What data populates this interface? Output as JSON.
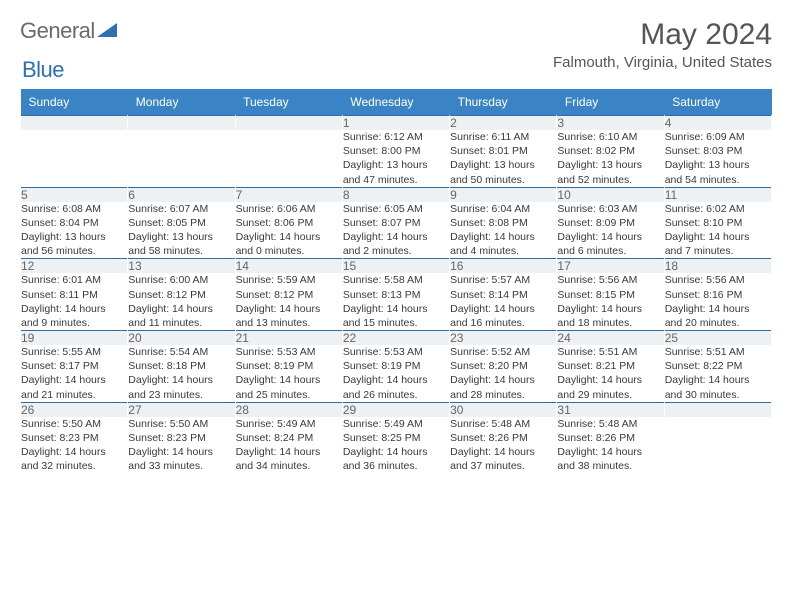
{
  "logo": {
    "word1": "General",
    "word2": "Blue"
  },
  "title": "May 2024",
  "location": "Falmouth, Virginia, United States",
  "colors": {
    "header_bg": "#3a84c5",
    "header_text": "#ffffff",
    "daynum_bg": "#eef1f3",
    "row_border": "#2c6aa8",
    "body_text": "#3a3a3a",
    "title_text": "#555555",
    "logo_gray": "#6a6a6a",
    "logo_blue": "#2f6fb3"
  },
  "day_headers": [
    "Sunday",
    "Monday",
    "Tuesday",
    "Wednesday",
    "Thursday",
    "Friday",
    "Saturday"
  ],
  "weeks": [
    [
      null,
      null,
      null,
      {
        "n": "1",
        "sr": "6:12 AM",
        "ss": "8:00 PM",
        "dh": "13",
        "dm": "47"
      },
      {
        "n": "2",
        "sr": "6:11 AM",
        "ss": "8:01 PM",
        "dh": "13",
        "dm": "50"
      },
      {
        "n": "3",
        "sr": "6:10 AM",
        "ss": "8:02 PM",
        "dh": "13",
        "dm": "52"
      },
      {
        "n": "4",
        "sr": "6:09 AM",
        "ss": "8:03 PM",
        "dh": "13",
        "dm": "54"
      }
    ],
    [
      {
        "n": "5",
        "sr": "6:08 AM",
        "ss": "8:04 PM",
        "dh": "13",
        "dm": "56"
      },
      {
        "n": "6",
        "sr": "6:07 AM",
        "ss": "8:05 PM",
        "dh": "13",
        "dm": "58"
      },
      {
        "n": "7",
        "sr": "6:06 AM",
        "ss": "8:06 PM",
        "dh": "14",
        "dm": "0"
      },
      {
        "n": "8",
        "sr": "6:05 AM",
        "ss": "8:07 PM",
        "dh": "14",
        "dm": "2"
      },
      {
        "n": "9",
        "sr": "6:04 AM",
        "ss": "8:08 PM",
        "dh": "14",
        "dm": "4"
      },
      {
        "n": "10",
        "sr": "6:03 AM",
        "ss": "8:09 PM",
        "dh": "14",
        "dm": "6"
      },
      {
        "n": "11",
        "sr": "6:02 AM",
        "ss": "8:10 PM",
        "dh": "14",
        "dm": "7"
      }
    ],
    [
      {
        "n": "12",
        "sr": "6:01 AM",
        "ss": "8:11 PM",
        "dh": "14",
        "dm": "9"
      },
      {
        "n": "13",
        "sr": "6:00 AM",
        "ss": "8:12 PM",
        "dh": "14",
        "dm": "11"
      },
      {
        "n": "14",
        "sr": "5:59 AM",
        "ss": "8:12 PM",
        "dh": "14",
        "dm": "13"
      },
      {
        "n": "15",
        "sr": "5:58 AM",
        "ss": "8:13 PM",
        "dh": "14",
        "dm": "15"
      },
      {
        "n": "16",
        "sr": "5:57 AM",
        "ss": "8:14 PM",
        "dh": "14",
        "dm": "16"
      },
      {
        "n": "17",
        "sr": "5:56 AM",
        "ss": "8:15 PM",
        "dh": "14",
        "dm": "18"
      },
      {
        "n": "18",
        "sr": "5:56 AM",
        "ss": "8:16 PM",
        "dh": "14",
        "dm": "20"
      }
    ],
    [
      {
        "n": "19",
        "sr": "5:55 AM",
        "ss": "8:17 PM",
        "dh": "14",
        "dm": "21"
      },
      {
        "n": "20",
        "sr": "5:54 AM",
        "ss": "8:18 PM",
        "dh": "14",
        "dm": "23"
      },
      {
        "n": "21",
        "sr": "5:53 AM",
        "ss": "8:19 PM",
        "dh": "14",
        "dm": "25"
      },
      {
        "n": "22",
        "sr": "5:53 AM",
        "ss": "8:19 PM",
        "dh": "14",
        "dm": "26"
      },
      {
        "n": "23",
        "sr": "5:52 AM",
        "ss": "8:20 PM",
        "dh": "14",
        "dm": "28"
      },
      {
        "n": "24",
        "sr": "5:51 AM",
        "ss": "8:21 PM",
        "dh": "14",
        "dm": "29"
      },
      {
        "n": "25",
        "sr": "5:51 AM",
        "ss": "8:22 PM",
        "dh": "14",
        "dm": "30"
      }
    ],
    [
      {
        "n": "26",
        "sr": "5:50 AM",
        "ss": "8:23 PM",
        "dh": "14",
        "dm": "32"
      },
      {
        "n": "27",
        "sr": "5:50 AM",
        "ss": "8:23 PM",
        "dh": "14",
        "dm": "33"
      },
      {
        "n": "28",
        "sr": "5:49 AM",
        "ss": "8:24 PM",
        "dh": "14",
        "dm": "34"
      },
      {
        "n": "29",
        "sr": "5:49 AM",
        "ss": "8:25 PM",
        "dh": "14",
        "dm": "36"
      },
      {
        "n": "30",
        "sr": "5:48 AM",
        "ss": "8:26 PM",
        "dh": "14",
        "dm": "37"
      },
      {
        "n": "31",
        "sr": "5:48 AM",
        "ss": "8:26 PM",
        "dh": "14",
        "dm": "38"
      },
      null
    ]
  ],
  "labels": {
    "sunrise": "Sunrise:",
    "sunset": "Sunset:",
    "daylight": "Daylight:",
    "hours_word": "hours",
    "and_word": "and",
    "minutes_word": "minutes."
  }
}
